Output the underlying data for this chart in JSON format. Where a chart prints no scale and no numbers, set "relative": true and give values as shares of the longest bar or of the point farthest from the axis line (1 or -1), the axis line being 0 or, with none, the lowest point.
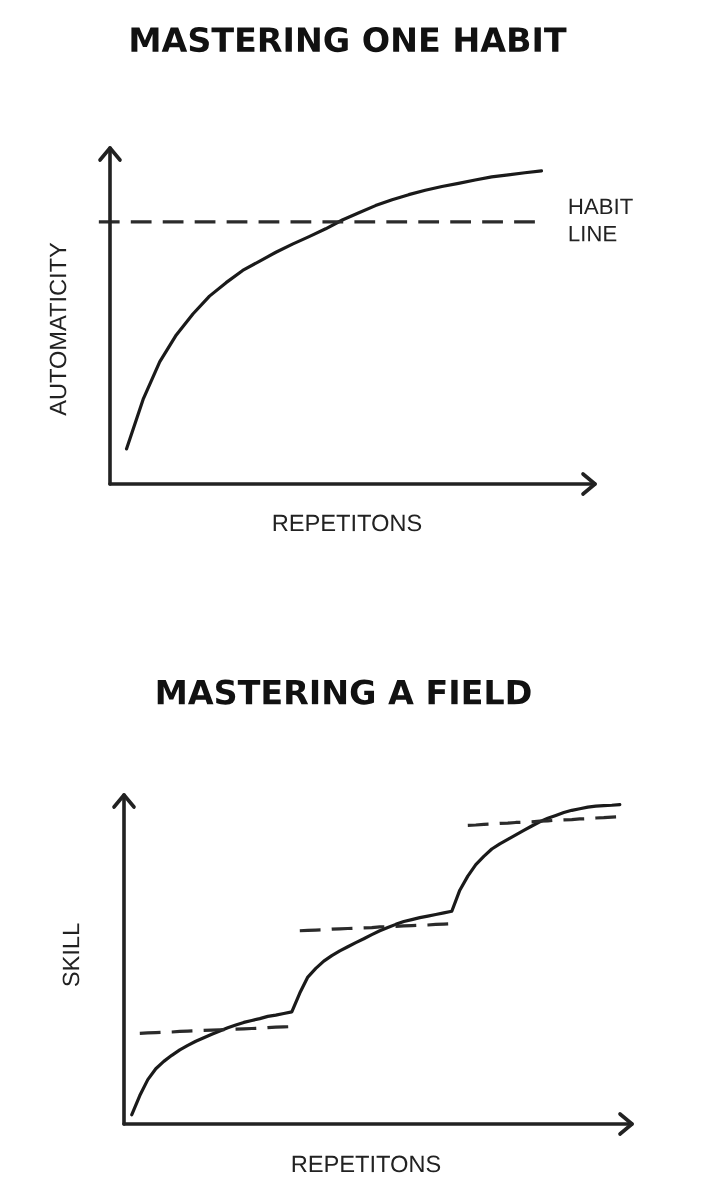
{
  "chart_data": [
    {
      "type": "line",
      "title": "MASTERING ONE HABIT",
      "xlabel": "REPETITONS",
      "ylabel": "AUTOMATICITY",
      "relative": true,
      "categories": [
        null,
        null,
        null,
        null,
        null,
        null,
        null,
        null,
        null,
        null,
        null,
        null,
        null,
        null,
        null,
        null,
        null,
        null,
        null,
        null,
        null,
        null,
        null,
        null,
        null,
        null
      ],
      "series": [
        {
          "color": "#1a1a1a",
          "line_style": "solid",
          "values": [
            0.112,
            0.27,
            0.39,
            0.476,
            0.543,
            0.6,
            0.643,
            0.682,
            0.711,
            0.74,
            0.766,
            0.79,
            0.815,
            0.843,
            0.866,
            0.889,
            0.908,
            0.924,
            0.938,
            0.95,
            0.96,
            0.971,
            0.981,
            0.987,
            0.994,
            1.0
          ]
        }
      ],
      "ref_lines": [
        {
          "axis": "y",
          "value": 0.837,
          "label": "HABIT LINE",
          "color": "#2b2b2b",
          "line_style": "dashed"
        }
      ]
    },
    {
      "type": "line",
      "title": "MASTERING A FIELD",
      "xlabel": "REPETITONS",
      "ylabel": "SKILL",
      "relative": true,
      "categories": [
        null,
        null,
        null,
        null,
        null,
        null,
        null,
        null,
        null,
        null,
        null,
        null,
        null,
        null,
        null,
        null,
        null,
        null,
        null,
        null,
        null,
        null,
        null,
        null,
        null,
        null,
        null,
        null,
        null,
        null,
        null,
        null,
        null,
        null,
        null,
        null,
        null,
        null,
        null,
        null,
        null,
        null,
        null,
        null,
        null,
        null,
        null,
        null,
        null,
        null,
        null,
        null,
        null,
        null,
        null,
        null,
        null,
        null,
        null,
        null,
        null,
        null
      ],
      "series": [
        {
          "color": "#1a1a1a",
          "line_style": "solid",
          "values": [
            0.029,
            0.089,
            0.139,
            0.173,
            0.196,
            0.215,
            0.232,
            0.246,
            0.259,
            0.27,
            0.281,
            0.291,
            0.301,
            0.31,
            0.318,
            0.324,
            0.33,
            0.337,
            0.341,
            0.346,
            0.351,
            0.41,
            0.46,
            0.487,
            0.51,
            0.527,
            0.542,
            0.555,
            0.568,
            0.58,
            0.593,
            0.605,
            0.615,
            0.625,
            0.634,
            0.64,
            0.646,
            0.651,
            0.656,
            0.661,
            0.666,
            0.732,
            0.776,
            0.812,
            0.838,
            0.861,
            0.877,
            0.891,
            0.905,
            0.919,
            0.933,
            0.946,
            0.957,
            0.966,
            0.975,
            0.982,
            0.987,
            0.992,
            0.995,
            0.997,
            0.998,
            1.0
          ]
        },
        {
          "color": "#2b2b2b",
          "line_style": "dashed",
          "values": [
            null,
            0.284,
            0.285,
            0.286,
            0.287,
            0.288,
            0.29,
            0.291,
            0.292,
            0.293,
            0.294,
            0.295,
            0.296,
            0.297,
            0.298,
            0.299,
            0.3,
            0.302,
            0.303,
            0.304,
            0.305,
            null,
            null,
            null,
            null,
            null,
            null,
            null,
            null,
            null,
            null,
            null,
            null,
            null,
            null,
            null,
            null,
            null,
            null,
            null,
            null,
            null,
            null,
            null,
            null,
            null,
            null,
            null,
            null,
            null,
            null,
            null,
            null,
            null,
            null,
            null,
            null,
            null,
            null,
            null,
            null,
            null
          ]
        },
        {
          "color": "#2b2b2b",
          "line_style": "dashed",
          "values": [
            null,
            null,
            null,
            null,
            null,
            null,
            null,
            null,
            null,
            null,
            null,
            null,
            null,
            null,
            null,
            null,
            null,
            null,
            null,
            null,
            null,
            0.605,
            0.606,
            0.607,
            0.608,
            0.61,
            0.611,
            0.612,
            0.613,
            0.614,
            0.615,
            0.617,
            0.618,
            0.619,
            0.62,
            0.621,
            0.622,
            0.623,
            0.625,
            0.626,
            0.627,
            null,
            null,
            null,
            null,
            null,
            null,
            null,
            null,
            null,
            null,
            null,
            null,
            null,
            null,
            null,
            null,
            null,
            null,
            null,
            null,
            null
          ]
        },
        {
          "color": "#2b2b2b",
          "line_style": "dashed",
          "values": [
            null,
            null,
            null,
            null,
            null,
            null,
            null,
            null,
            null,
            null,
            null,
            null,
            null,
            null,
            null,
            null,
            null,
            null,
            null,
            null,
            null,
            null,
            null,
            null,
            null,
            null,
            null,
            null,
            null,
            null,
            null,
            null,
            null,
            null,
            null,
            null,
            null,
            null,
            null,
            null,
            null,
            null,
            0.935,
            0.936,
            0.938,
            0.939,
            0.941,
            0.942,
            0.944,
            0.945,
            0.946,
            0.948,
            0.949,
            0.951,
            0.952,
            0.953,
            0.955,
            0.956,
            0.958,
            0.959,
            0.961,
            0.962
          ]
        }
      ]
    }
  ]
}
